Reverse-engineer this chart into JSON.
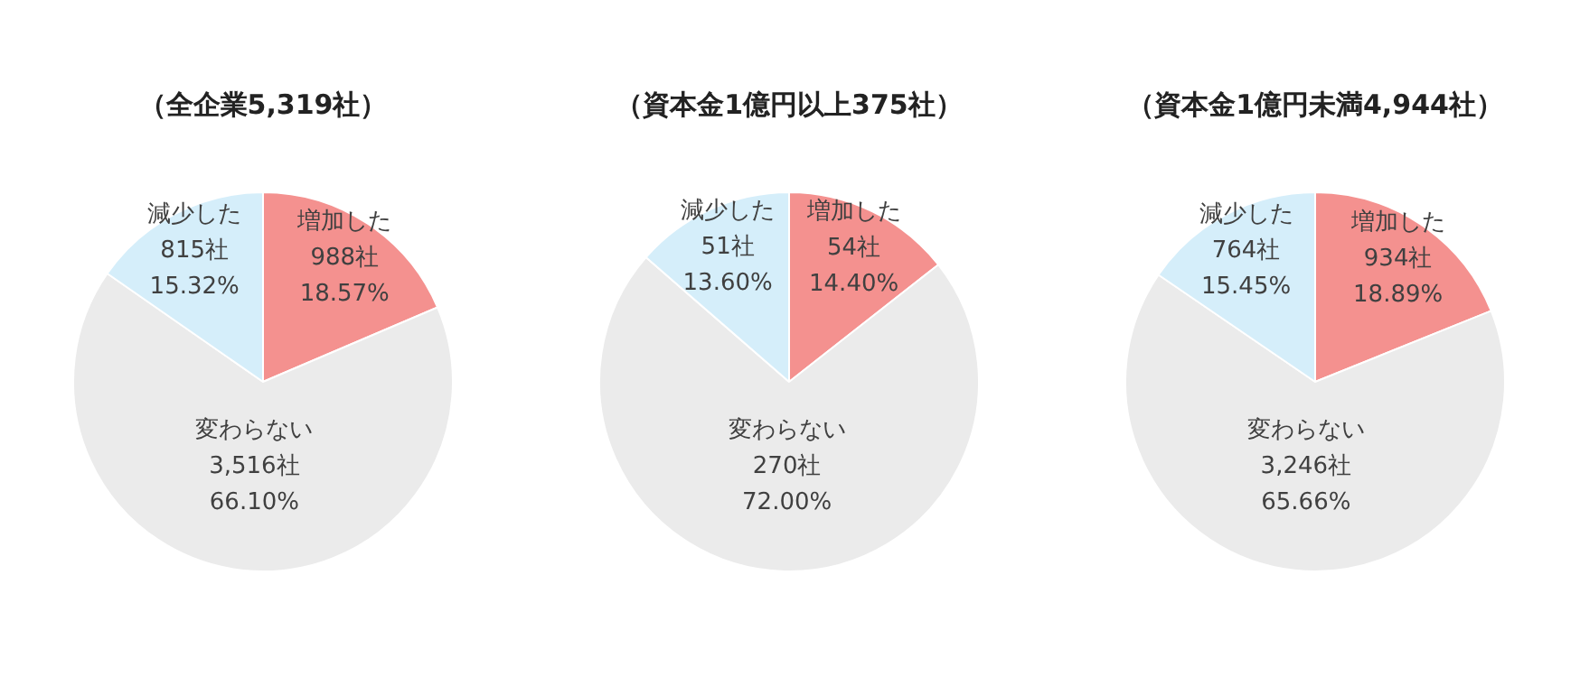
{
  "chart_data": [
    {
      "type": "pie",
      "title": "（全企業5,319社）",
      "categories": [
        "増加した",
        "変わらない",
        "減少した"
      ],
      "values": [
        988,
        3516,
        815
      ],
      "colors": [
        "#f4918f",
        "#ebebeb",
        "#d5eefa"
      ],
      "value_labels": [
        "988社\n18.57%",
        "3,516社\n66.10%",
        "815社\n15.32%"
      ],
      "legend": false
    },
    {
      "type": "pie",
      "title": "（資本金1億円以上375社）",
      "categories": [
        "増加した",
        "変わらない",
        "減少した"
      ],
      "values": [
        54,
        270,
        51
      ],
      "colors": [
        "#f4918f",
        "#ebebeb",
        "#d5eefa"
      ],
      "value_labels": [
        "54社\n14.40%",
        "270社\n72.00%",
        "51社\n13.60%"
      ],
      "legend": false
    },
    {
      "type": "pie",
      "title": "（資本金1億円未満4,944社）",
      "categories": [
        "増加した",
        "変わらない",
        "減少した"
      ],
      "values": [
        934,
        3246,
        764
      ],
      "colors": [
        "#f4918f",
        "#ebebeb",
        "#d5eefa"
      ],
      "value_labels": [
        "934社\n18.89%",
        "3,246社\n65.66%",
        "764社\n15.45%"
      ],
      "legend": false
    }
  ]
}
